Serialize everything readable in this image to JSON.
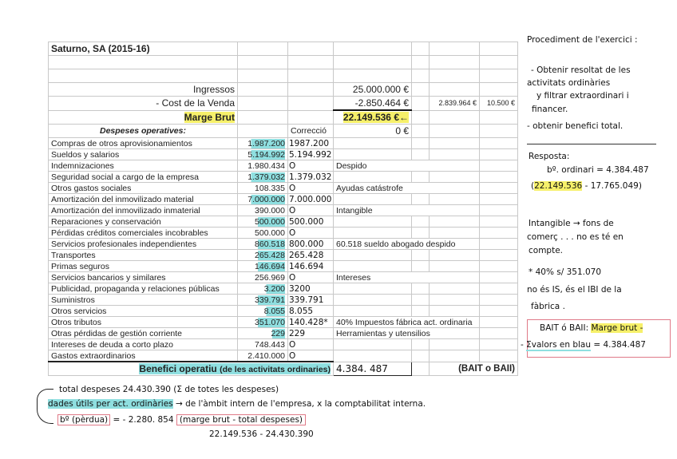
{
  "sheet": {
    "title": "Saturno, SA (2015-16)",
    "ingressos_label": "Ingressos",
    "ingressos_value": "25.000.000 €",
    "cost_label": "- Cost de la Venda",
    "cost_value": "-2.850.464 €",
    "cost_part1": "2.839.964 €",
    "cost_part2": "10.500 €",
    "marge_label": "Marge Brut",
    "marge_value": "22.149.536 €",
    "marge_arrow": "←",
    "despeses_label": "Despeses operatives:",
    "correccio_label": "Correcció",
    "zero_value": "0 €",
    "rows": [
      {
        "label": "Compras de otros aprovisionamientos",
        "value": "1.987.200",
        "correccio": "1987.200",
        "note": "",
        "highlight": true
      },
      {
        "label": "Sueldos y salarios",
        "value": "5.194.992",
        "correccio": "5.194.992",
        "note": "",
        "highlight": true
      },
      {
        "label": "Indemnizaciones",
        "value": "1.980.434",
        "correccio": "O",
        "note": "Despido",
        "highlight": false
      },
      {
        "label": "Seguridad social a cargo de la empresa",
        "value": "1.379.032",
        "correccio": "1.379.032",
        "note": "",
        "highlight": true
      },
      {
        "label": "Otros gastos sociales",
        "value": "108.335",
        "correccio": "O",
        "note": "Ayudas catástrofe",
        "highlight": false
      },
      {
        "label": "Amortización del inmovilizado material",
        "value": "7.000.000",
        "correccio": "7.000.000",
        "note": "",
        "highlight": true
      },
      {
        "label": "Amortización del inmovilizado inmaterial",
        "value": "390.000",
        "correccio": "O",
        "note": "Intangible",
        "highlight": false
      },
      {
        "label": "Reparaciones y conservación",
        "value": "500.000",
        "correccio": "500.000",
        "note": "",
        "highlight": true
      },
      {
        "label": "Pérdidas créditos comerciales incobrables",
        "value": "500.000",
        "correccio": "O",
        "note": "",
        "highlight": false
      },
      {
        "label": "Servicios profesionales independientes",
        "value": "860.518",
        "correccio": "800.000",
        "note": "60.518 sueldo abogado despido",
        "highlight": true
      },
      {
        "label": "Transportes",
        "value": "265.428",
        "correccio": "265.428",
        "note": "",
        "highlight": true
      },
      {
        "label": "Primas seguros",
        "value": "146.694",
        "correccio": "146.694",
        "note": "",
        "highlight": true
      },
      {
        "label": "Servicios bancarios y similares",
        "value": "256.969",
        "correccio": "O",
        "note": "Intereses",
        "highlight": false
      },
      {
        "label": "Publicidad, propaganda y relaciones públicas",
        "value": "3.200",
        "correccio": "3200",
        "note": "",
        "highlight": true
      },
      {
        "label": "Suministros",
        "value": "339.791",
        "correccio": "339.791",
        "note": "",
        "highlight": true
      },
      {
        "label": "Otros servicios",
        "value": "8.055",
        "correccio": "8.055",
        "note": "",
        "highlight": true
      },
      {
        "label": "Otros tributos",
        "value": "351.070",
        "correccio": "140.428*",
        "note": "40% Impuestos fábrica act. ordinaria",
        "highlight": true
      },
      {
        "label": "Otras pérdidas de gestión corriente",
        "value": "229",
        "correccio": "229",
        "note": "Herramientas y utensilios",
        "highlight": true
      },
      {
        "label": "Intereses de deuda a corto plazo",
        "value": "748.443",
        "correccio": "O",
        "note": "",
        "highlight": false
      },
      {
        "label": "Gastos extraordinarios",
        "value": "2.410.000",
        "correccio": "O",
        "note": "",
        "highlight": false
      }
    ],
    "benefici_label": "Benefici operatiu",
    "benefici_sub": "(de les activitats ordinaries)",
    "benefici_value": "4.384. 487",
    "bait_label": "(BAIT o BAII)"
  },
  "notes": {
    "procediment": "Procediment de l'exercici :",
    "step1a": "- Obtenir resoltat de les",
    "step1b": "activitats ordinàries",
    "step1c": "y filtrar extraordinari i",
    "step1d": "financer.",
    "step2": "- obtenir benefici total.",
    "resposta": "Resposta:",
    "bo_ordinari": "bº. ordinari = 4.384.487",
    "calc_open": "(",
    "calc_a": "22.149.536",
    "calc_b": " - 17.765.049)",
    "intangible1": "Intangible → fons de",
    "intangible2": "comerç . . .  no es té en",
    "intangible3": "compte.",
    "star1": "* 40% s/ 351.070",
    "star2": "no és IS, és el IBI de la",
    "star3": "fàbrica .",
    "bait1": "BAIT ó BAII: ",
    "bait1_hl": "Marge brut -",
    "bait2_a": "- ",
    "bait2_u": "Σvalors en blau",
    "bait2_b": " = 4.384.487",
    "total": "total despeses  24.430.390  (Σ de totes les despeses)",
    "dades_hl": "dades útils per act. ordinàries",
    "dades_rest": " → de l'àmbit intern de l'empresa, x la comptabilitat interna.",
    "perdua_box": "bº (pèrdua)",
    "perdua_val": " = - 2.280. 854 ",
    "perdua_formula": "(marge brut - total despeses)",
    "perdua_calc": "22.149.536  -  24.430.390"
  },
  "colors": {
    "highlight_yellow": "#f6f06a",
    "highlight_blue": "#8fdfe0",
    "box_pink": "#e07a88"
  }
}
